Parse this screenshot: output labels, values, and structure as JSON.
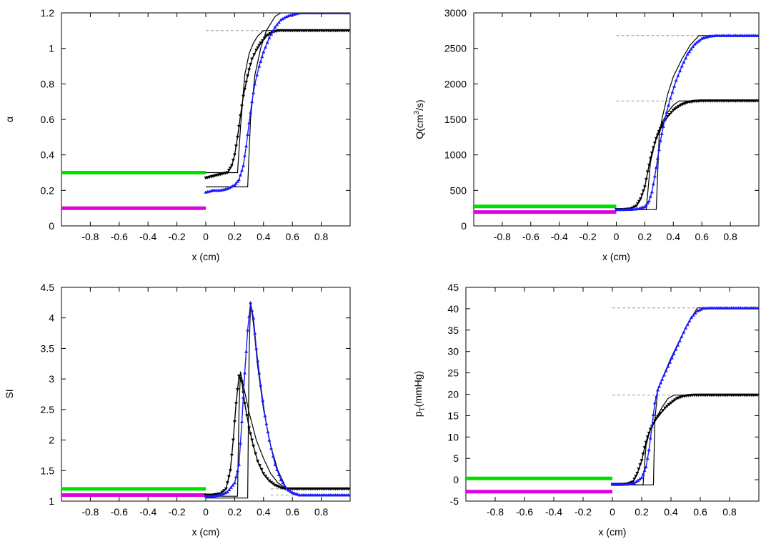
{
  "chart_data": [
    {
      "id": "alpha",
      "type": "line",
      "title": "",
      "xlabel": "x (cm)",
      "ylabel": "α",
      "ylabel_sup": "",
      "ylabel_rest": "",
      "xlim": [
        -1,
        1
      ],
      "ylim": [
        0,
        1.2
      ],
      "xticks": [
        -0.8,
        -0.6,
        -0.4,
        -0.2,
        0,
        0.2,
        0.4,
        0.6,
        0.8
      ],
      "xtick_labels": [
        "-0.8",
        "-0.6",
        "-0.4",
        "-0.2",
        "0",
        "0.2",
        "0.4",
        "0.6",
        "0.8"
      ],
      "yticks": [
        0,
        0.2,
        0.4,
        0.6,
        0.8,
        1,
        1.2
      ],
      "ytick_labels": [
        "0",
        "0.2",
        "0.4",
        "0.6",
        "0.8",
        "1",
        "1.2"
      ],
      "series": [
        {
          "name": "green-inlet",
          "color": "#00e000",
          "style": "thick",
          "x": [
            -1,
            0
          ],
          "y": [
            0.3,
            0.3
          ]
        },
        {
          "name": "magenta-inlet",
          "color": "#e000e0",
          "style": "thick",
          "x": [
            -1,
            0
          ],
          "y": [
            0.1,
            0.1
          ]
        },
        {
          "name": "upper-reference",
          "color": "#999999",
          "style": "dashed",
          "x": [
            0,
            0.5
          ],
          "y": [
            1.1,
            1.1
          ]
        },
        {
          "name": "black-exact",
          "color": "#000000",
          "style": "line",
          "x": [
            0,
            0.22,
            0.24,
            0.27,
            0.3,
            0.33,
            0.36,
            0.4,
            0.45,
            0.6,
            1
          ],
          "y": [
            0.3,
            0.3,
            0.55,
            0.85,
            0.97,
            1.03,
            1.07,
            1.1,
            1.1,
            1.1,
            1.1
          ]
        },
        {
          "name": "blue-exact",
          "color": "#000000",
          "style": "line",
          "x": [
            0,
            0.29,
            0.31,
            0.34,
            0.38,
            0.42,
            0.48,
            0.52,
            1
          ],
          "y": [
            0.22,
            0.22,
            0.6,
            0.85,
            1.0,
            1.1,
            1.18,
            1.2,
            1.2
          ]
        },
        {
          "name": "black-numerical",
          "color": "#000000",
          "style": "markers-down",
          "x": [
            0,
            0.05,
            0.1,
            0.15,
            0.18,
            0.2,
            0.22,
            0.24,
            0.26,
            0.28,
            0.3,
            0.32,
            0.35,
            0.38,
            0.42,
            0.46,
            0.5,
            0.55,
            0.6,
            0.7,
            0.8,
            0.9,
            1.0
          ],
          "y": [
            0.27,
            0.28,
            0.29,
            0.3,
            0.34,
            0.4,
            0.5,
            0.62,
            0.73,
            0.81,
            0.88,
            0.94,
            0.99,
            1.03,
            1.07,
            1.09,
            1.1,
            1.1,
            1.1,
            1.1,
            1.1,
            1.1,
            1.1
          ]
        },
        {
          "name": "blue-numerical",
          "color": "#1a1aff",
          "style": "markers-up",
          "x": [
            0,
            0.05,
            0.1,
            0.15,
            0.2,
            0.23,
            0.26,
            0.28,
            0.3,
            0.32,
            0.34,
            0.37,
            0.4,
            0.44,
            0.48,
            0.52,
            0.56,
            0.6,
            0.65,
            0.7,
            0.8,
            0.9,
            1.0
          ],
          "y": [
            0.19,
            0.2,
            0.2,
            0.21,
            0.23,
            0.26,
            0.34,
            0.45,
            0.58,
            0.7,
            0.8,
            0.9,
            0.98,
            1.06,
            1.12,
            1.16,
            1.18,
            1.19,
            1.2,
            1.2,
            1.2,
            1.2,
            1.2
          ]
        }
      ]
    },
    {
      "id": "flow",
      "type": "line",
      "title": "",
      "xlabel": "x (cm)",
      "ylabel": "",
      "ylabel_base": "Q(cm",
      "ylabel_sup": "3",
      "ylabel_rest": "/s)",
      "xlim": [
        -1,
        1
      ],
      "ylim": [
        0,
        3000
      ],
      "xticks": [
        -0.8,
        -0.6,
        -0.4,
        -0.2,
        0,
        0.2,
        0.4,
        0.6,
        0.8
      ],
      "xtick_labels": [
        "-0.8",
        "-0.6",
        "-0.4",
        "-0.2",
        "0",
        "0.2",
        "0.4",
        "0.6",
        "0.8"
      ],
      "yticks": [
        0,
        500,
        1000,
        1500,
        2000,
        2500,
        3000
      ],
      "ytick_labels": [
        "0",
        "500",
        "1000",
        "1500",
        "2000",
        "2500",
        "3000"
      ],
      "series": [
        {
          "name": "green-inlet",
          "color": "#00e000",
          "style": "thick",
          "x": [
            -1,
            0
          ],
          "y": [
            275,
            275
          ]
        },
        {
          "name": "magenta-inlet",
          "color": "#e000e0",
          "style": "thick",
          "x": [
            -1,
            0
          ],
          "y": [
            195,
            195
          ]
        },
        {
          "name": "ref-high",
          "color": "#999999",
          "style": "dashed",
          "x": [
            0,
            0.6
          ],
          "y": [
            2680,
            2680
          ]
        },
        {
          "name": "ref-low",
          "color": "#999999",
          "style": "dashed",
          "x": [
            0,
            0.4
          ],
          "y": [
            1760,
            1760
          ]
        },
        {
          "name": "black-exact",
          "color": "#000000",
          "style": "line",
          "x": [
            0,
            0.21,
            0.24,
            0.28,
            0.32,
            0.36,
            0.4,
            0.44,
            0.5,
            1
          ],
          "y": [
            230,
            230,
            900,
            1250,
            1450,
            1600,
            1700,
            1760,
            1760,
            1760
          ]
        },
        {
          "name": "blue-exact",
          "color": "#000000",
          "style": "line",
          "x": [
            0,
            0.28,
            0.3,
            0.32,
            0.36,
            0.4,
            0.46,
            0.52,
            0.58,
            1
          ],
          "y": [
            230,
            230,
            1250,
            1500,
            1850,
            2100,
            2350,
            2550,
            2680,
            2680
          ]
        },
        {
          "name": "black-numerical",
          "color": "#000000",
          "style": "markers-down",
          "x": [
            0,
            0.05,
            0.1,
            0.14,
            0.17,
            0.2,
            0.22,
            0.24,
            0.26,
            0.28,
            0.3,
            0.33,
            0.36,
            0.4,
            0.45,
            0.5,
            0.55,
            0.6,
            0.7,
            0.8,
            0.9,
            1.0
          ],
          "y": [
            230,
            230,
            240,
            280,
            380,
            550,
            760,
            950,
            1100,
            1230,
            1330,
            1450,
            1540,
            1630,
            1700,
            1740,
            1755,
            1760,
            1760,
            1760,
            1760,
            1760
          ]
        },
        {
          "name": "blue-numerical",
          "color": "#1a1aff",
          "style": "markers-up",
          "x": [
            0,
            0.05,
            0.1,
            0.15,
            0.2,
            0.23,
            0.25,
            0.27,
            0.29,
            0.31,
            0.34,
            0.38,
            0.42,
            0.46,
            0.5,
            0.55,
            0.6,
            0.65,
            0.7,
            0.8,
            0.9,
            1.0
          ],
          "y": [
            230,
            230,
            232,
            240,
            270,
            350,
            480,
            700,
            950,
            1200,
            1500,
            1800,
            2050,
            2250,
            2420,
            2560,
            2640,
            2670,
            2680,
            2680,
            2680,
            2680
          ]
        }
      ]
    },
    {
      "id": "si",
      "type": "line",
      "title": "",
      "xlabel": "x (cm)",
      "ylabel": "SI",
      "ylabel_sup": "",
      "ylabel_rest": "",
      "xlim": [
        -1,
        1
      ],
      "ylim": [
        1,
        4.5
      ],
      "xticks": [
        -0.8,
        -0.6,
        -0.4,
        -0.2,
        0,
        0.2,
        0.4,
        0.6,
        0.8
      ],
      "xtick_labels": [
        "-0.8",
        "-0.6",
        "-0.4",
        "-0.2",
        "0",
        "0.2",
        "0.4",
        "0.6",
        "0.8"
      ],
      "yticks": [
        1,
        1.5,
        2,
        2.5,
        3,
        3.5,
        4,
        4.5
      ],
      "ytick_labels": [
        "1",
        "1.5",
        "2",
        "2.5",
        "3",
        "3.5",
        "4",
        "4.5"
      ],
      "series": [
        {
          "name": "green-inlet",
          "color": "#00e000",
          "style": "thick",
          "x": [
            -1,
            0
          ],
          "y": [
            1.2,
            1.2
          ]
        },
        {
          "name": "magenta-inlet",
          "color": "#e000e0",
          "style": "thick",
          "x": [
            -1,
            0
          ],
          "y": [
            1.1,
            1.1
          ]
        },
        {
          "name": "ref-high",
          "color": "#999999",
          "style": "dashed",
          "x": [
            0.45,
            1
          ],
          "y": [
            1.2,
            1.2
          ]
        },
        {
          "name": "ref-low",
          "color": "#999999",
          "style": "dashed",
          "x": [
            0.45,
            1
          ],
          "y": [
            1.1,
            1.1
          ]
        },
        {
          "name": "black-exact",
          "color": "#000000",
          "style": "line",
          "x": [
            0,
            0.22,
            0.23,
            0.24,
            0.26,
            0.3,
            0.35,
            0.4,
            0.45,
            0.5,
            0.55,
            0.58,
            0.62,
            1
          ],
          "y": [
            1.08,
            1.08,
            2.5,
            3.12,
            2.9,
            2.45,
            2.0,
            1.7,
            1.45,
            1.3,
            1.22,
            1.2,
            1.2,
            1.2
          ]
        },
        {
          "name": "blue-exact",
          "color": "#000000",
          "style": "line",
          "x": [
            0,
            0.29,
            0.3,
            0.31,
            0.33,
            0.36,
            0.4,
            0.45,
            0.5,
            0.55,
            0.58,
            0.62,
            1
          ],
          "y": [
            1.05,
            1.05,
            3.4,
            4.25,
            3.9,
            3.2,
            2.5,
            1.9,
            1.5,
            1.25,
            1.15,
            1.1,
            1.1
          ]
        },
        {
          "name": "black-numerical",
          "color": "#000000",
          "style": "markers-down",
          "x": [
            0,
            0.05,
            0.1,
            0.14,
            0.17,
            0.19,
            0.21,
            0.23,
            0.25,
            0.27,
            0.3,
            0.33,
            0.36,
            0.4,
            0.44,
            0.48,
            0.52,
            0.56,
            0.6,
            0.7,
            0.8,
            0.9,
            1.0
          ],
          "y": [
            1.1,
            1.1,
            1.12,
            1.2,
            1.5,
            2.0,
            2.6,
            3.05,
            2.95,
            2.6,
            2.2,
            1.9,
            1.65,
            1.45,
            1.33,
            1.26,
            1.22,
            1.2,
            1.2,
            1.2,
            1.2,
            1.2,
            1.2
          ]
        },
        {
          "name": "blue-numerical",
          "color": "#1a1aff",
          "style": "markers-up",
          "x": [
            0,
            0.05,
            0.1,
            0.15,
            0.2,
            0.23,
            0.25,
            0.27,
            0.29,
            0.31,
            0.33,
            0.35,
            0.38,
            0.41,
            0.44,
            0.48,
            0.52,
            0.56,
            0.6,
            0.65,
            0.7,
            0.8,
            0.9,
            1.0
          ],
          "y": [
            1.08,
            1.08,
            1.1,
            1.15,
            1.3,
            1.6,
            2.3,
            3.1,
            3.8,
            4.25,
            4.0,
            3.5,
            2.9,
            2.4,
            2.0,
            1.6,
            1.35,
            1.2,
            1.14,
            1.1,
            1.1,
            1.1,
            1.1,
            1.1
          ]
        }
      ]
    },
    {
      "id": "pressure",
      "type": "line",
      "title": "",
      "xlabel": "x (cm)",
      "ylabel": "",
      "ylabel_base": "p",
      "ylabel_sub": "T",
      "ylabel_rest": "(mmHg)",
      "xlim": [
        -1,
        1
      ],
      "ylim": [
        -5,
        45
      ],
      "xticks": [
        -0.8,
        -0.6,
        -0.4,
        -0.2,
        0,
        0.2,
        0.4,
        0.6,
        0.8
      ],
      "xtick_labels": [
        "-0.8",
        "-0.6",
        "-0.4",
        "-0.2",
        "0",
        "0.2",
        "0.4",
        "0.6",
        "0.8"
      ],
      "yticks": [
        -5,
        0,
        5,
        10,
        15,
        20,
        25,
        30,
        35,
        40,
        45
      ],
      "ytick_labels": [
        "-5",
        "0",
        "5",
        "10",
        "15",
        "20",
        "25",
        "30",
        "35",
        "40",
        "45"
      ],
      "series": [
        {
          "name": "green-inlet",
          "color": "#00e000",
          "style": "thick",
          "x": [
            -1,
            0
          ],
          "y": [
            0.3,
            0.3
          ]
        },
        {
          "name": "magenta-inlet",
          "color": "#e000e0",
          "style": "thick",
          "x": [
            -1,
            0
          ],
          "y": [
            -2.8,
            -2.8
          ]
        },
        {
          "name": "ref-high",
          "color": "#999999",
          "style": "dashed",
          "x": [
            0,
            0.6
          ],
          "y": [
            40.2,
            40.2
          ]
        },
        {
          "name": "ref-low",
          "color": "#999999",
          "style": "dashed",
          "x": [
            0,
            0.4
          ],
          "y": [
            19.8,
            19.8
          ]
        },
        {
          "name": "black-exact",
          "color": "#000000",
          "style": "line",
          "x": [
            0,
            0.21,
            0.23,
            0.26,
            0.3,
            0.34,
            0.38,
            0.42,
            1
          ],
          "y": [
            -1.2,
            -1.2,
            8.0,
            12.0,
            14.5,
            17.0,
            19.0,
            19.8,
            19.8
          ]
        },
        {
          "name": "blue-exact",
          "color": "#000000",
          "style": "line",
          "x": [
            0,
            0.28,
            0.29,
            0.31,
            0.35,
            0.4,
            0.45,
            0.5,
            0.55,
            0.58,
            1
          ],
          "y": [
            -1.2,
            -1.2,
            14.0,
            21.0,
            24.5,
            28.5,
            32.0,
            35.5,
            38.5,
            40.2,
            40.2
          ]
        },
        {
          "name": "black-numerical",
          "color": "#000000",
          "style": "markers-down",
          "x": [
            0,
            0.05,
            0.1,
            0.14,
            0.17,
            0.2,
            0.22,
            0.24,
            0.26,
            0.28,
            0.3,
            0.33,
            0.36,
            0.4,
            0.44,
            0.48,
            0.52,
            0.56,
            0.6,
            0.7,
            0.8,
            0.9,
            1.0
          ],
          "y": [
            -1.1,
            -1.1,
            -1.0,
            -0.5,
            1.5,
            4.5,
            7.5,
            10.0,
            11.8,
            13.2,
            14.3,
            15.6,
            16.8,
            18.0,
            19.0,
            19.5,
            19.7,
            19.8,
            19.8,
            19.8,
            19.8,
            19.8,
            19.8
          ]
        },
        {
          "name": "blue-numerical",
          "color": "#1a1aff",
          "style": "markers-up",
          "x": [
            0,
            0.05,
            0.1,
            0.15,
            0.2,
            0.23,
            0.25,
            0.27,
            0.29,
            0.31,
            0.34,
            0.38,
            0.42,
            0.46,
            0.5,
            0.54,
            0.58,
            0.62,
            0.66,
            0.7,
            0.8,
            0.9,
            1.0
          ],
          "y": [
            -1.1,
            -1.1,
            -1.05,
            -0.8,
            0.5,
            3.0,
            7.0,
            12.5,
            18.0,
            21.0,
            23.5,
            26.5,
            29.5,
            32.5,
            35.5,
            38.0,
            39.5,
            40.1,
            40.2,
            40.2,
            40.2,
            40.2,
            40.2
          ]
        }
      ]
    }
  ]
}
